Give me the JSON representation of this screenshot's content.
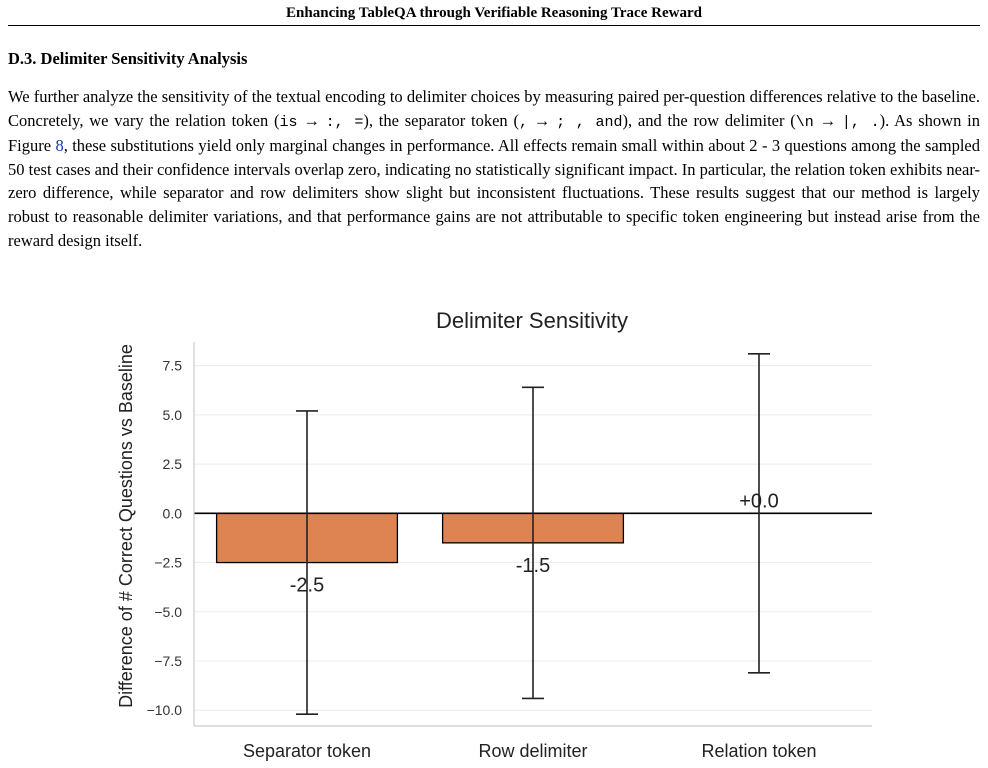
{
  "running_head": "Enhancing TableQA through Verifiable Reasoning Trace Reward",
  "section": {
    "number": "D.3.",
    "title": "Delimiter Sensitivity Analysis"
  },
  "paragraph": {
    "p1": "We further analyze the sensitivity of the textual encoding to delimiter choices by measuring paired per-question differences relative to the baseline. Concretely, we vary the relation token (",
    "c1": "is",
    "p2": " → ",
    "c2": ":, =",
    "p3": "), the separator token (",
    "c3": ",",
    "p4": " → ",
    "c4": "; , and",
    "p5": "), and the row delimiter (",
    "c5": "\\n",
    "p6": " → ",
    "c6": "|, .",
    "p7": "). As shown in Figure ",
    "ref": "8",
    "p8": ", these substitutions yield only marginal changes in performance. All effects remain small within about 2 - 3 questions among the sampled 50 test cases and their confidence intervals overlap zero, indicating no statistically significant impact. In particular, the relation token exhibits near-zero difference, while separator and row delimiters show slight but inconsistent fluctuations. These results suggest that our method is largely robust to reasonable delimiter variations, and that performance gains are not attributable to specific token engineering but instead arise from the reward design itself."
  },
  "chart_data": {
    "type": "bar",
    "title": "Delimiter Sensitivity",
    "xlabel": "",
    "ylabel": "Difference of # Correct Questions vs Baseline",
    "categories": [
      "Separator token",
      "Row delimiter",
      "Relation token"
    ],
    "values": [
      -2.5,
      -1.5,
      0.0
    ],
    "value_labels": [
      "-2.5",
      "-1.5",
      "+0.0"
    ],
    "error_low": [
      -10.2,
      -9.4,
      -8.1
    ],
    "error_high": [
      5.2,
      6.4,
      8.1
    ],
    "ylim": [
      -10.8,
      8.7
    ],
    "yticks": [
      7.5,
      5.0,
      2.5,
      0.0,
      -2.5,
      -5.0,
      -7.5,
      -10.0
    ],
    "ytick_labels": [
      "7.5",
      "5.0",
      "2.5",
      "0.0",
      "−2.5",
      "−5.0",
      "−7.5",
      "−10.0"
    ],
    "grid": true,
    "legend": "none",
    "zero_line": true,
    "bar_color": "#dd8452",
    "edge_color": "#000000",
    "grid_color": "#ececec",
    "axis_color": "#cccccc"
  }
}
